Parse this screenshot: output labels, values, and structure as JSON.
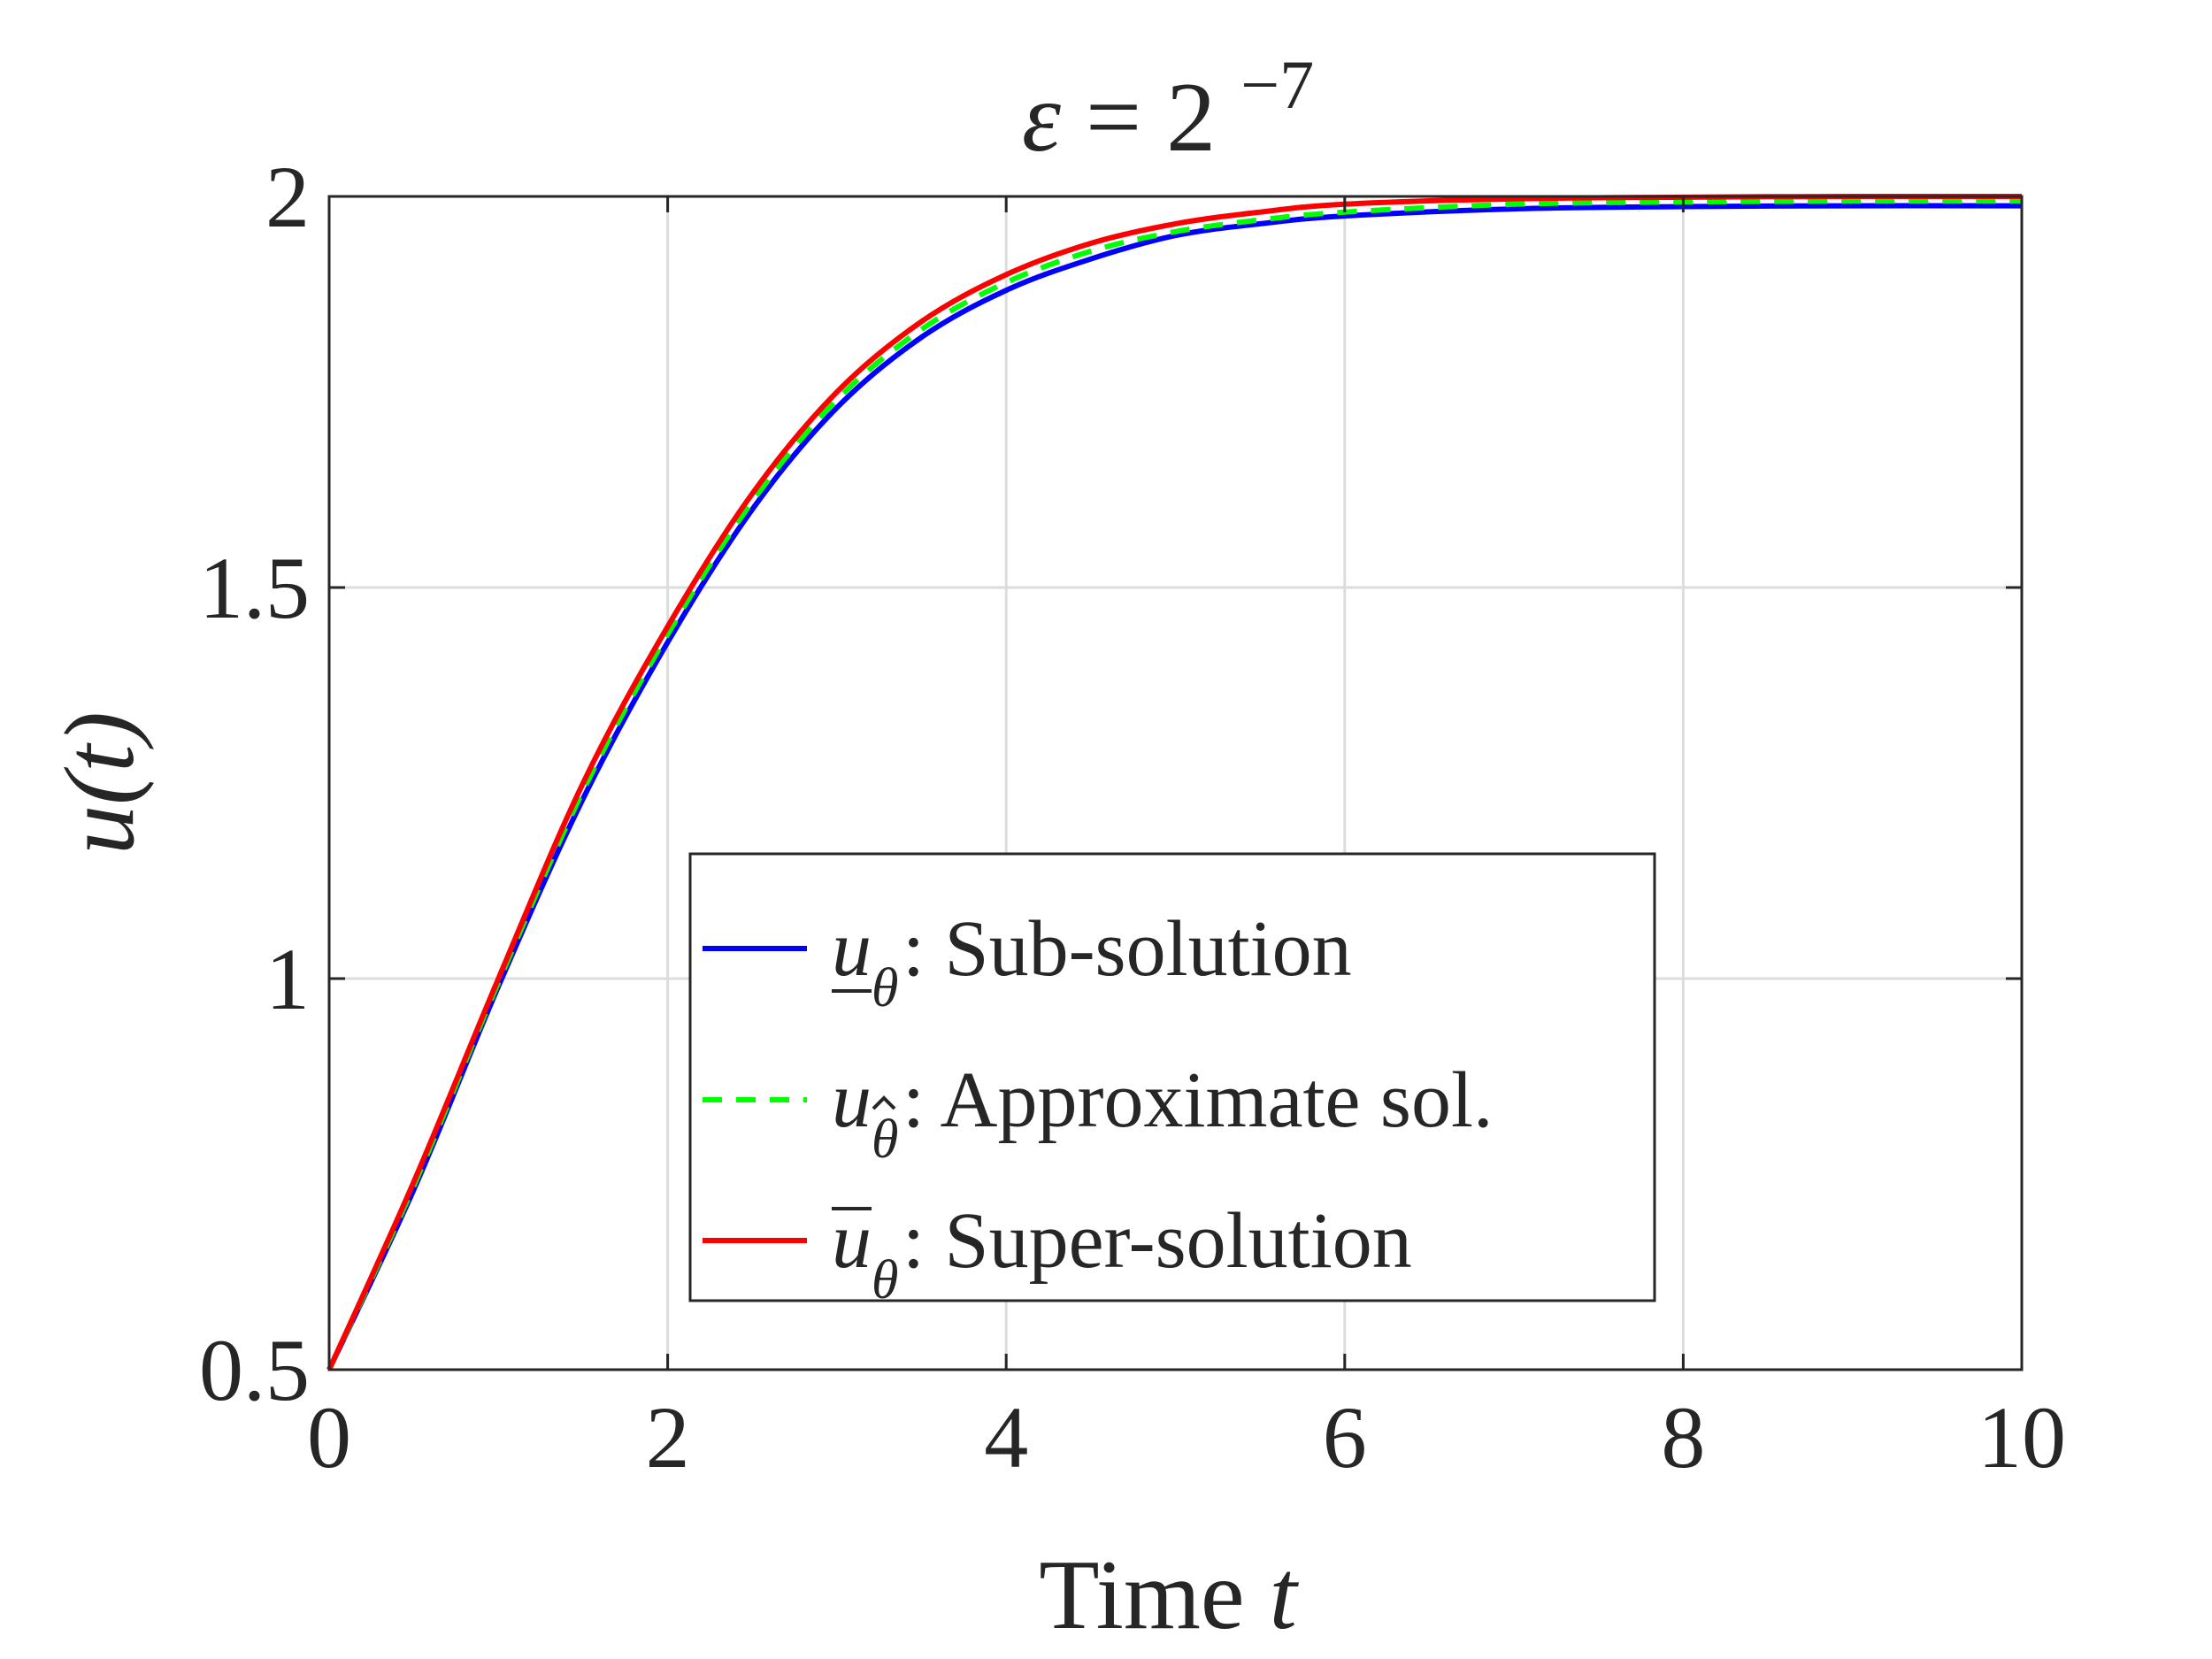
{
  "chart_data": {
    "type": "line",
    "title": {
      "symbol": "ε",
      "equals": " = ",
      "base": "2",
      "exponent": "−7"
    },
    "xlabel": {
      "text": "Time ",
      "var": "t"
    },
    "ylabel": {
      "text": "u(t)"
    },
    "xlim": [
      0,
      10
    ],
    "ylim": [
      0.5,
      2
    ],
    "xticks": [
      0,
      2,
      4,
      6,
      8,
      10
    ],
    "yticks": [
      0.5,
      1,
      1.5,
      2
    ],
    "xtick_labels": [
      "0",
      "2",
      "4",
      "6",
      "8",
      "10"
    ],
    "ytick_labels": [
      "0.5",
      "1",
      "1.5",
      "2"
    ],
    "grid": true,
    "legend_position": "lower-center",
    "x": [
      0,
      0.5,
      1,
      1.5,
      2,
      2.5,
      3,
      3.5,
      4,
      4.5,
      5,
      5.5,
      6,
      7,
      8,
      9,
      10
    ],
    "series": [
      {
        "name": "Sub-solution",
        "symbol": "u",
        "subscript": "θ",
        "mark": "underline",
        "color": "#0000ff",
        "dash": "solid",
        "values": [
          0.5,
          0.73,
          0.99,
          1.23,
          1.43,
          1.6,
          1.73,
          1.82,
          1.88,
          1.92,
          1.95,
          1.965,
          1.975,
          1.984,
          1.987,
          1.988,
          1.988
        ]
      },
      {
        "name": "Approximate sol.",
        "symbol": "u",
        "subscript": "θ",
        "mark": "hat",
        "color": "#00ff00",
        "dash": "dashed",
        "values": [
          0.5,
          0.735,
          0.995,
          1.24,
          1.44,
          1.61,
          1.74,
          1.83,
          1.89,
          1.93,
          1.955,
          1.97,
          1.98,
          1.99,
          1.993,
          1.994,
          1.994
        ]
      },
      {
        "name": "Super-solution",
        "symbol": "u",
        "subscript": "θ",
        "mark": "overline",
        "color": "#ff0000",
        "dash": "solid",
        "values": [
          0.5,
          0.74,
          1.0,
          1.25,
          1.45,
          1.62,
          1.75,
          1.84,
          1.9,
          1.94,
          1.965,
          1.98,
          1.99,
          1.997,
          1.999,
          2.0,
          2.0
        ]
      }
    ]
  }
}
